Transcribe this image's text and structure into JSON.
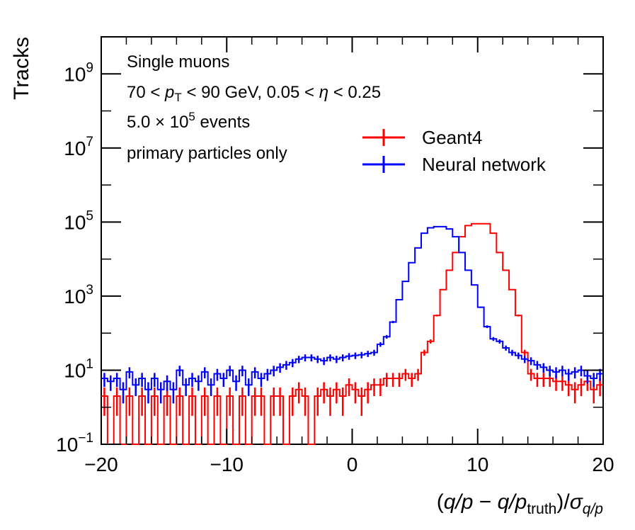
{
  "chart_data": {
    "type": "line",
    "ylabel": "Tracks",
    "xlabel": "(q/p − q/p_truth)/σ_q/p",
    "yscale": "log",
    "xlim": [
      -20,
      20
    ],
    "ylim_log10": [
      -1,
      10
    ],
    "x_ticks": [
      -20,
      -10,
      0,
      10,
      20
    ],
    "x_tick_labels": [
      "−20",
      "−10",
      "0",
      "10",
      "20"
    ],
    "y_ticks_log10": [
      -1,
      1,
      3,
      5,
      7,
      9
    ],
    "y_tick_bases": [
      "10",
      "10",
      "10",
      "10",
      "10",
      "10"
    ],
    "y_tick_exponents": [
      "−1",
      "1",
      "3",
      "5",
      "7",
      "9"
    ],
    "annotations": [
      "Single muons",
      "70 < pT < 90 GeV, 0.05 < η < 0.25",
      "5.0 × 10⁵ events",
      "primary particles only"
    ],
    "annotation_parts": {
      "line1": "Single muons",
      "line2_prefix": "70 < ",
      "line2_p": "p",
      "line2_sub": "T",
      "line2_suffix": " < 90 GeV, 0.05 < ",
      "line2_eta": "η",
      "line2_end": " < 0.25",
      "line3_prefix": "5.0 × 10",
      "line3_exp": "5",
      "line3_suffix": " events",
      "line4": "primary particles only"
    },
    "xlabel_parts": {
      "open": "(",
      "q1": "q/p",
      "minus": " − ",
      "q2": "q/p",
      "sub2": "truth",
      "close": ")/",
      "sigma": "σ",
      "sigma_sub": "q/p"
    },
    "series": [
      {
        "name": "Geant4",
        "color": "#ff0000",
        "bin_edges_range": [
          -20,
          20
        ],
        "bin_width": 0.5,
        "values": [
          2,
          0,
          2,
          0,
          2,
          0,
          2,
          0,
          2,
          0,
          2,
          0,
          2,
          0,
          2,
          0,
          2,
          0,
          2,
          0,
          2,
          0,
          2,
          0,
          2,
          2,
          0,
          2,
          2,
          0,
          2,
          3,
          2,
          0,
          2,
          3,
          2,
          3,
          2,
          4,
          3,
          2,
          3,
          4,
          4,
          6,
          6,
          6,
          8,
          6,
          8,
          30,
          60,
          300,
          1500,
          5000,
          15000,
          40000,
          80000,
          90000,
          90000,
          90000,
          50000,
          15000,
          5000,
          1500,
          300,
          30,
          8,
          6,
          6,
          6,
          5,
          5,
          4,
          3,
          4,
          5,
          3,
          4
        ]
      },
      {
        "name": "Neural network",
        "color": "#0000ff",
        "bin_edges_range": [
          -20,
          20
        ],
        "bin_width": 0.5,
        "values": [
          6,
          5,
          6,
          3,
          9,
          4,
          6,
          3,
          6,
          3,
          5,
          3,
          10,
          4,
          6,
          5,
          9,
          4,
          8,
          6,
          10,
          5,
          10,
          4,
          9,
          6,
          8,
          10,
          12,
          14,
          16,
          20,
          22,
          22,
          20,
          18,
          22,
          20,
          22,
          24,
          25,
          26,
          28,
          30,
          50,
          80,
          200,
          800,
          2500,
          8000,
          20000,
          50000,
          70000,
          75000,
          75000,
          65000,
          40000,
          15000,
          5000,
          2000,
          500,
          150,
          70,
          60,
          40,
          30,
          25,
          20,
          18,
          14,
          12,
          10,
          9,
          10,
          8,
          9,
          10,
          7,
          6,
          8
        ]
      }
    ]
  },
  "legend": {
    "items": [
      {
        "label": "Geant4",
        "color": "#ff0000"
      },
      {
        "label": "Neural network",
        "color": "#0000ff"
      }
    ]
  }
}
